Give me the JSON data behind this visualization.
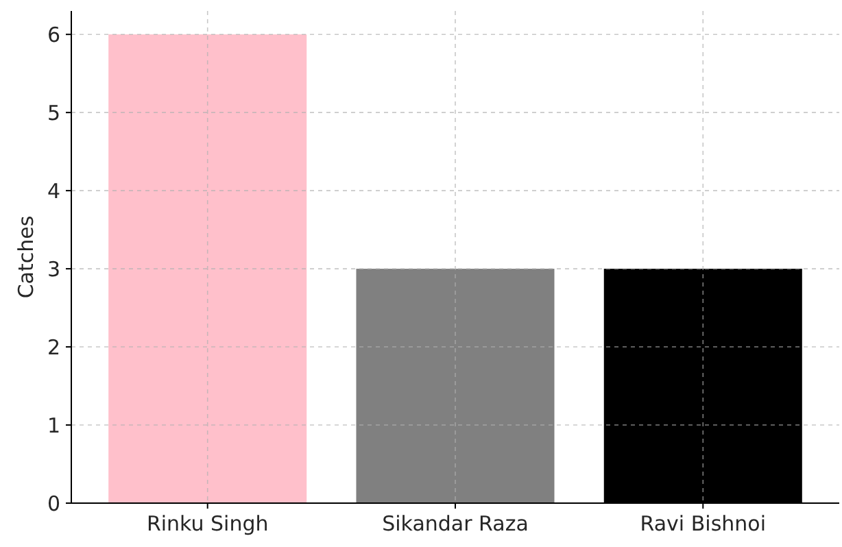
{
  "chart_data": {
    "type": "bar",
    "ylabel": "Catches",
    "categories": [
      "Rinku Singh",
      "Sikandar Raza",
      "Ravi Bishnoi"
    ],
    "values": [
      6,
      3,
      3
    ],
    "colors": [
      "#ffc0cb",
      "#808080",
      "#000000"
    ],
    "ylim": [
      0,
      6.3
    ],
    "yticks": [
      0,
      1,
      2,
      3,
      4,
      5,
      6
    ],
    "grid": true
  }
}
